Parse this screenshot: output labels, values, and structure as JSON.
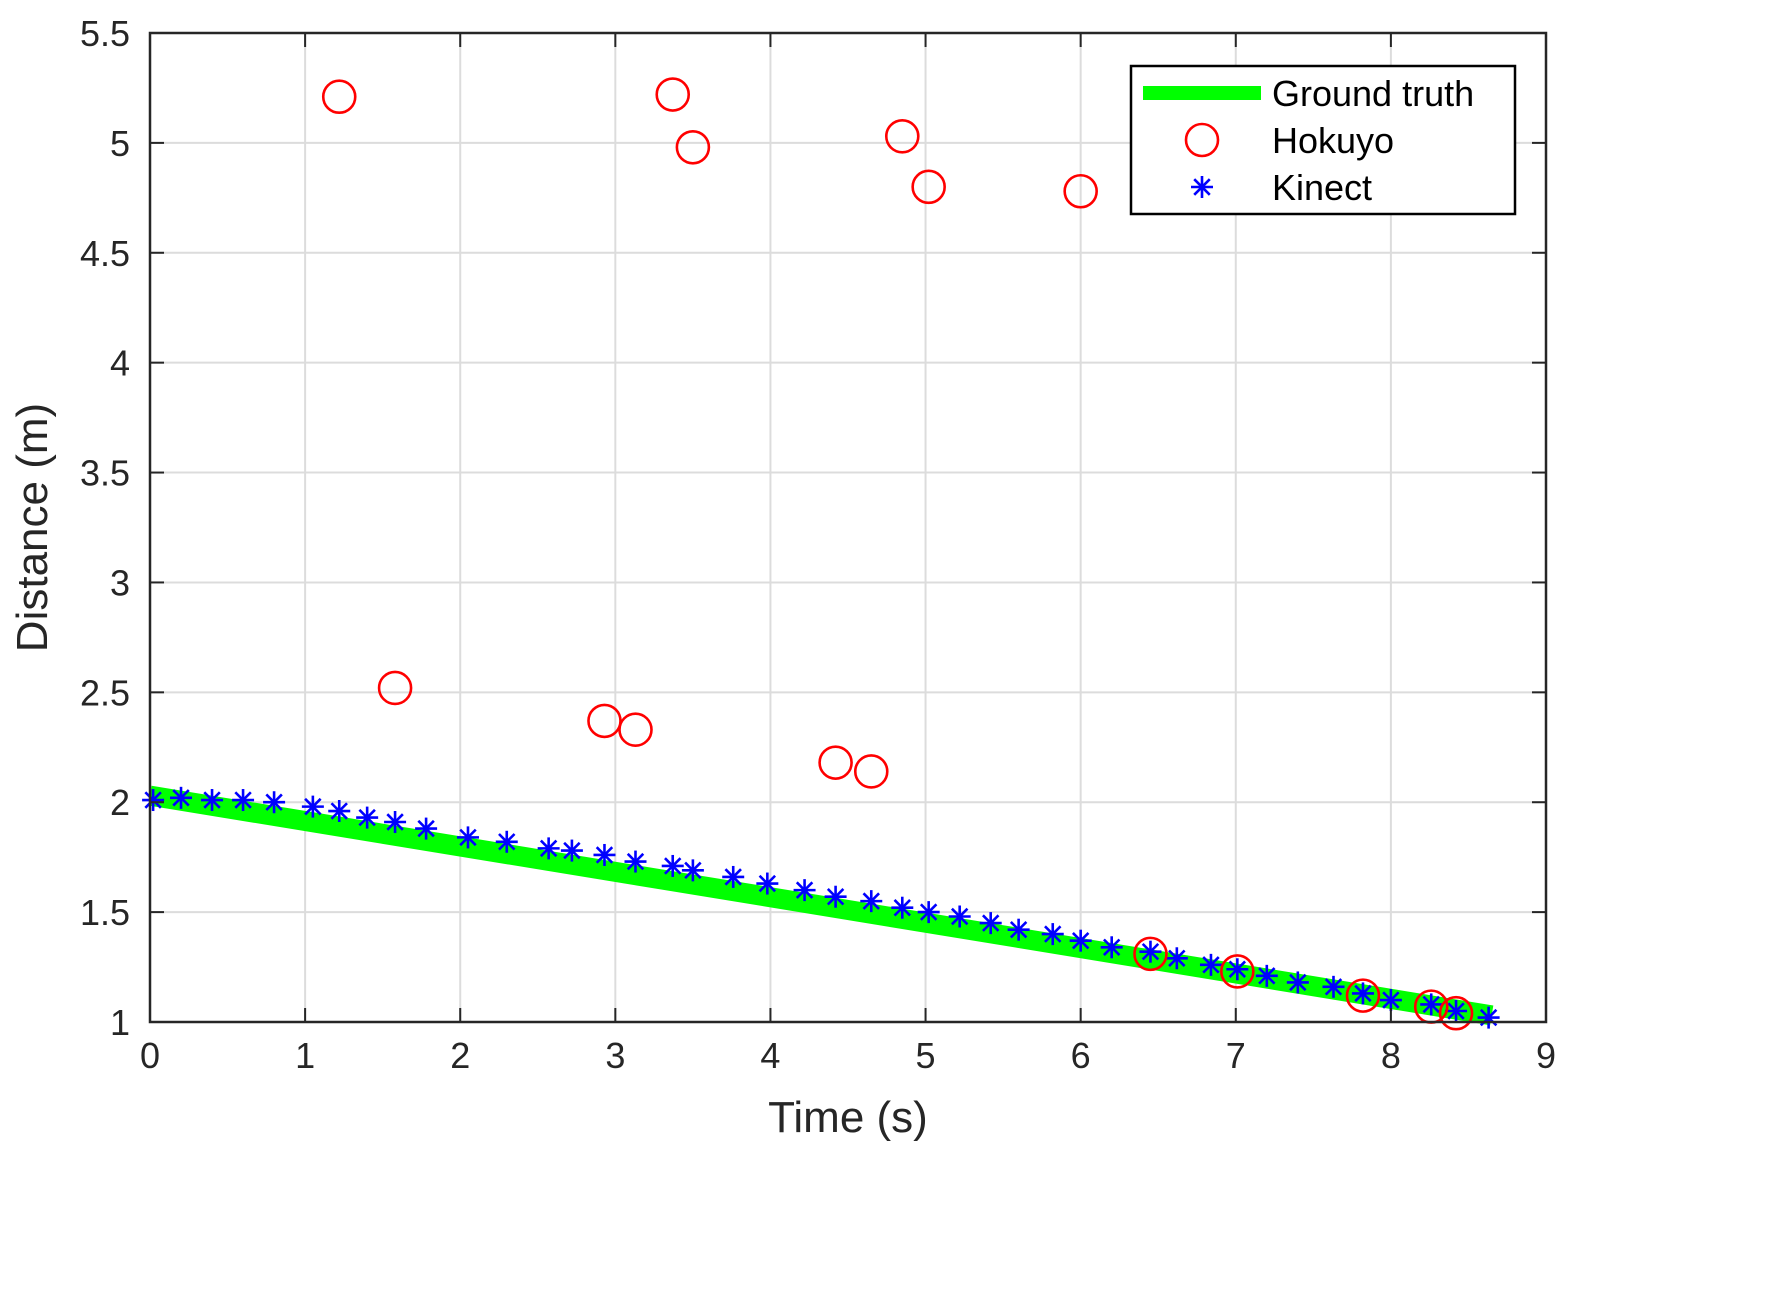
{
  "chart_data": {
    "type": "scatter",
    "title": "",
    "xlabel": "Time (s)",
    "ylabel": "Distance (m)",
    "xlim": [
      0,
      9
    ],
    "ylim": [
      1,
      5.5
    ],
    "xticks": [
      "0",
      "1",
      "2",
      "3",
      "4",
      "5",
      "6",
      "7",
      "8",
      "9"
    ],
    "yticks": [
      "1",
      "1.5",
      "2",
      "2.5",
      "3",
      "3.5",
      "4",
      "4.5",
      "5",
      "5.5"
    ],
    "grid": true,
    "legend_position": "top-right",
    "series": [
      {
        "name": "Ground truth",
        "kind": "line",
        "color": "#00ff00",
        "x": [
          0,
          8.65
        ],
        "y": [
          2.03,
          1.03
        ]
      },
      {
        "name": "Hokuyo",
        "kind": "marker-circle",
        "color": "#ff0000",
        "x": [
          1.22,
          1.58,
          2.93,
          3.13,
          3.37,
          3.5,
          4.42,
          4.65,
          4.85,
          5.02,
          6.0,
          6.45,
          7.01,
          7.82,
          8.26,
          8.42
        ],
        "y": [
          5.21,
          2.52,
          2.37,
          2.33,
          5.22,
          4.98,
          2.18,
          2.14,
          5.03,
          4.8,
          4.78,
          1.31,
          1.23,
          1.12,
          1.07,
          1.04
        ]
      },
      {
        "name": "Kinect",
        "kind": "marker-star",
        "color": "#0000ff",
        "x": [
          0.02,
          0.2,
          0.4,
          0.6,
          0.8,
          1.05,
          1.22,
          1.4,
          1.58,
          1.78,
          2.05,
          2.3,
          2.57,
          2.72,
          2.93,
          3.13,
          3.37,
          3.5,
          3.76,
          3.98,
          4.22,
          4.42,
          4.65,
          4.85,
          5.02,
          5.22,
          5.42,
          5.6,
          5.82,
          6.0,
          6.2,
          6.45,
          6.62,
          6.84,
          7.01,
          7.2,
          7.4,
          7.63,
          7.82,
          8.0,
          8.26,
          8.42,
          8.63
        ],
        "y": [
          2.01,
          2.02,
          2.01,
          2.01,
          2.0,
          1.98,
          1.96,
          1.93,
          1.91,
          1.88,
          1.84,
          1.82,
          1.79,
          1.78,
          1.76,
          1.73,
          1.71,
          1.69,
          1.66,
          1.63,
          1.6,
          1.57,
          1.55,
          1.52,
          1.5,
          1.48,
          1.45,
          1.42,
          1.4,
          1.37,
          1.34,
          1.32,
          1.29,
          1.26,
          1.24,
          1.21,
          1.18,
          1.16,
          1.13,
          1.1,
          1.08,
          1.05,
          1.02
        ]
      }
    ]
  }
}
